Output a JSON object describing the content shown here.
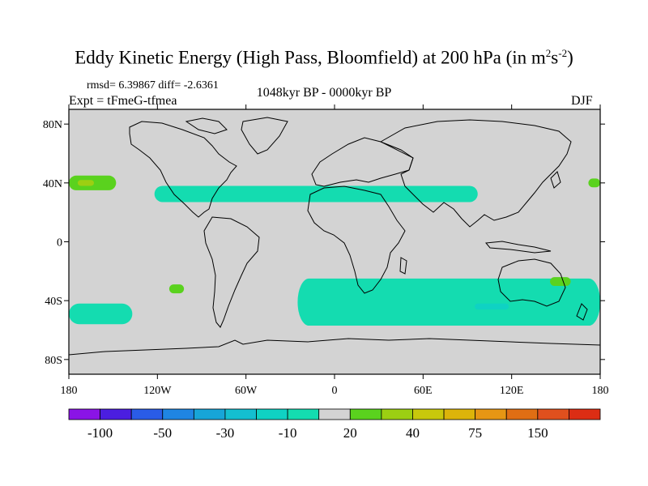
{
  "chart_data": {
    "type": "heatmap",
    "title_main": "Eddy Kinetic Energy (High Pass, Bloomfield) at 200 hPa (in m",
    "title_sup1": "2",
    "title_mid": "s",
    "title_sup2": "-2",
    "title_end": ")",
    "stats": "rmsd= 6.39867  diff= -2.6361",
    "expt": "Expt = tFmeG-tfmea",
    "period": "1048kyr BP - 0000kyr BP",
    "season": "DJF",
    "x_ticks": [
      "180",
      "120W",
      "60W",
      "0",
      "60E",
      "120E",
      "180"
    ],
    "x_values": [
      -180,
      -120,
      -60,
      0,
      60,
      120,
      180
    ],
    "y_ticks": [
      "80N",
      "40N",
      "0",
      "40S",
      "80S"
    ],
    "y_values": [
      80,
      40,
      0,
      -40,
      -80
    ],
    "xlim": [
      -180,
      180
    ],
    "ylim": [
      -90,
      90
    ],
    "colorbar": {
      "labels": [
        "-100",
        "-50",
        "-30",
        "-10",
        "20",
        "40",
        "75",
        "150"
      ],
      "label_box_index": [
        1,
        3,
        5,
        7,
        9,
        11,
        13,
        15
      ],
      "colors": [
        "#8a14e6",
        "#4b1ee0",
        "#2a5ce6",
        "#1f85e3",
        "#17a5d8",
        "#14bfd0",
        "#0fd2c3",
        "#14dcb0",
        "#d3d3d3",
        "#5ad21e",
        "#9ccf12",
        "#c8c80c",
        "#dcb40a",
        "#e69614",
        "#e06e14",
        "#e0501e",
        "#dc2d14"
      ]
    },
    "regions": [
      {
        "name": "positive-anomaly-north-pacific-west",
        "value": 20,
        "color": "#5ad21e",
        "lon_min": -180,
        "lon_max": -148,
        "lat_min": 35,
        "lat_max": 45
      },
      {
        "name": "positive-anomaly-north-pacific-core",
        "value": 40,
        "color": "#9ccf12",
        "lon_min": -174,
        "lon_max": -163,
        "lat_min": 38,
        "lat_max": 42
      },
      {
        "name": "positive-anomaly-north-pacific-east",
        "value": 20,
        "color": "#5ad21e",
        "lon_min": 172,
        "lon_max": 180,
        "lat_min": 37,
        "lat_max": 43
      },
      {
        "name": "negative-anomaly-subtropical-jet",
        "value": -10,
        "color": "#14dcb0",
        "lon_min": -122,
        "lon_max": 97,
        "lat_min": 27,
        "lat_max": 38
      },
      {
        "name": "positive-anomaly-south-pacific",
        "value": 20,
        "color": "#5ad21e",
        "lon_min": -112,
        "lon_max": -102,
        "lat_min": -35,
        "lat_max": -29
      },
      {
        "name": "negative-anomaly-south-pacific-storm-track",
        "value": -10,
        "color": "#14dcb0",
        "lon_min": -180,
        "lon_max": -137,
        "lat_min": -56,
        "lat_max": -42
      },
      {
        "name": "negative-anomaly-southern-ocean-storm-track",
        "value": -10,
        "color": "#14dcb0",
        "lon_min": -25,
        "lon_max": 180,
        "lat_min": -57,
        "lat_max": -25
      },
      {
        "name": "negative-anomaly-indian-ocean-core",
        "value": -30,
        "color": "#0fd2c3",
        "lon_min": 95,
        "lon_max": 118,
        "lat_min": -46,
        "lat_max": -42
      },
      {
        "name": "positive-anomaly-tasman-sea",
        "value": 20,
        "color": "#5ad21e",
        "lon_min": 146,
        "lon_max": 160,
        "lat_min": -30,
        "lat_max": -24
      }
    ]
  }
}
